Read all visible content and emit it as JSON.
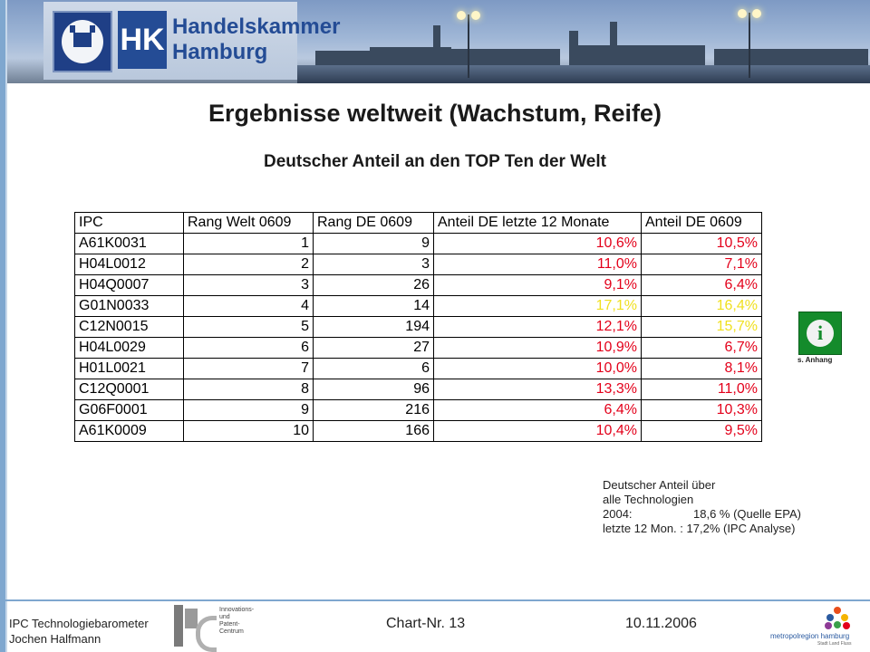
{
  "header": {
    "logo_box": "HK",
    "logo_name_line1": "Handelskammer",
    "logo_name_line2": "Hamburg"
  },
  "slide": {
    "title": "Ergebnisse weltweit (Wachstum, Reife)",
    "subtitle": "Deutscher Anteil an den TOP Ten der Welt"
  },
  "table": {
    "columns": [
      "IPC",
      "Rang Welt 0609",
      "Rang DE 0609",
      "Anteil DE letzte 12 Monate",
      "Anteil DE 0609"
    ],
    "rows": [
      {
        "ipc": "A61K0031",
        "rang_welt": "1",
        "rang_de": "9",
        "anteil_12m": "10,6%",
        "anteil_0609": "10,5%",
        "color_12m": "#e3001a",
        "color_0609": "#e3001a"
      },
      {
        "ipc": "H04L0012",
        "rang_welt": "2",
        "rang_de": "3",
        "anteil_12m": "11,0%",
        "anteil_0609": "7,1%",
        "color_12m": "#e3001a",
        "color_0609": "#e3001a"
      },
      {
        "ipc": "H04Q0007",
        "rang_welt": "3",
        "rang_de": "26",
        "anteil_12m": "9,1%",
        "anteil_0609": "6,4%",
        "color_12m": "#e3001a",
        "color_0609": "#e3001a"
      },
      {
        "ipc": "G01N0033",
        "rang_welt": "4",
        "rang_de": "14",
        "anteil_12m": "17,1%",
        "anteil_0609": "16,4%",
        "color_12m": "#f0e020",
        "color_0609": "#f0e020"
      },
      {
        "ipc": "C12N0015",
        "rang_welt": "5",
        "rang_de": "194",
        "anteil_12m": "12,1%",
        "anteil_0609": "15,7%",
        "color_12m": "#e3001a",
        "color_0609": "#f0e020"
      },
      {
        "ipc": "H04L0029",
        "rang_welt": "6",
        "rang_de": "27",
        "anteil_12m": "10,9%",
        "anteil_0609": "6,7%",
        "color_12m": "#e3001a",
        "color_0609": "#e3001a"
      },
      {
        "ipc": "H01L0021",
        "rang_welt": "7",
        "rang_de": "6",
        "anteil_12m": "10,0%",
        "anteil_0609": "8,1%",
        "color_12m": "#e3001a",
        "color_0609": "#e3001a"
      },
      {
        "ipc": "C12Q0001",
        "rang_welt": "8",
        "rang_de": "96",
        "anteil_12m": "13,3%",
        "anteil_0609": "11,0%",
        "color_12m": "#e3001a",
        "color_0609": "#e3001a"
      },
      {
        "ipc": "G06F0001",
        "rang_welt": "9",
        "rang_de": "216",
        "anteil_12m": "6,4%",
        "anteil_0609": "10,3%",
        "color_12m": "#e3001a",
        "color_0609": "#e3001a"
      },
      {
        "ipc": "A61K0009",
        "rang_welt": "10",
        "rang_de": "166",
        "anteil_12m": "10,4%",
        "anteil_0609": "9,5%",
        "color_12m": "#e3001a",
        "color_0609": "#e3001a"
      }
    ]
  },
  "info": {
    "icon": "info-icon",
    "glyph": "i",
    "label": "s. Anhang"
  },
  "note": {
    "line1": "Deutscher Anteil über",
    "line2": "alle Technologien",
    "row3_key": "2004:",
    "row3_val": "18,6 % (Quelle EPA)",
    "row4_key": "letzte 12 Mon. :",
    "row4_val": "17,2% (IPC Analyse)"
  },
  "footer": {
    "left_line1": "IPC Technologiebarometer",
    "left_line2": "Jochen Halfmann",
    "ipc_logo_line1": "Innovations-",
    "ipc_logo_line2": "und",
    "ipc_logo_line3": "Patent-",
    "ipc_logo_line4": "Centrum",
    "chart_nr": "Chart-Nr.  13",
    "date": "10.11.2006",
    "metro_name": "metropolregion hamburg",
    "metro_sub": "Stadt  Land  Fluss"
  }
}
